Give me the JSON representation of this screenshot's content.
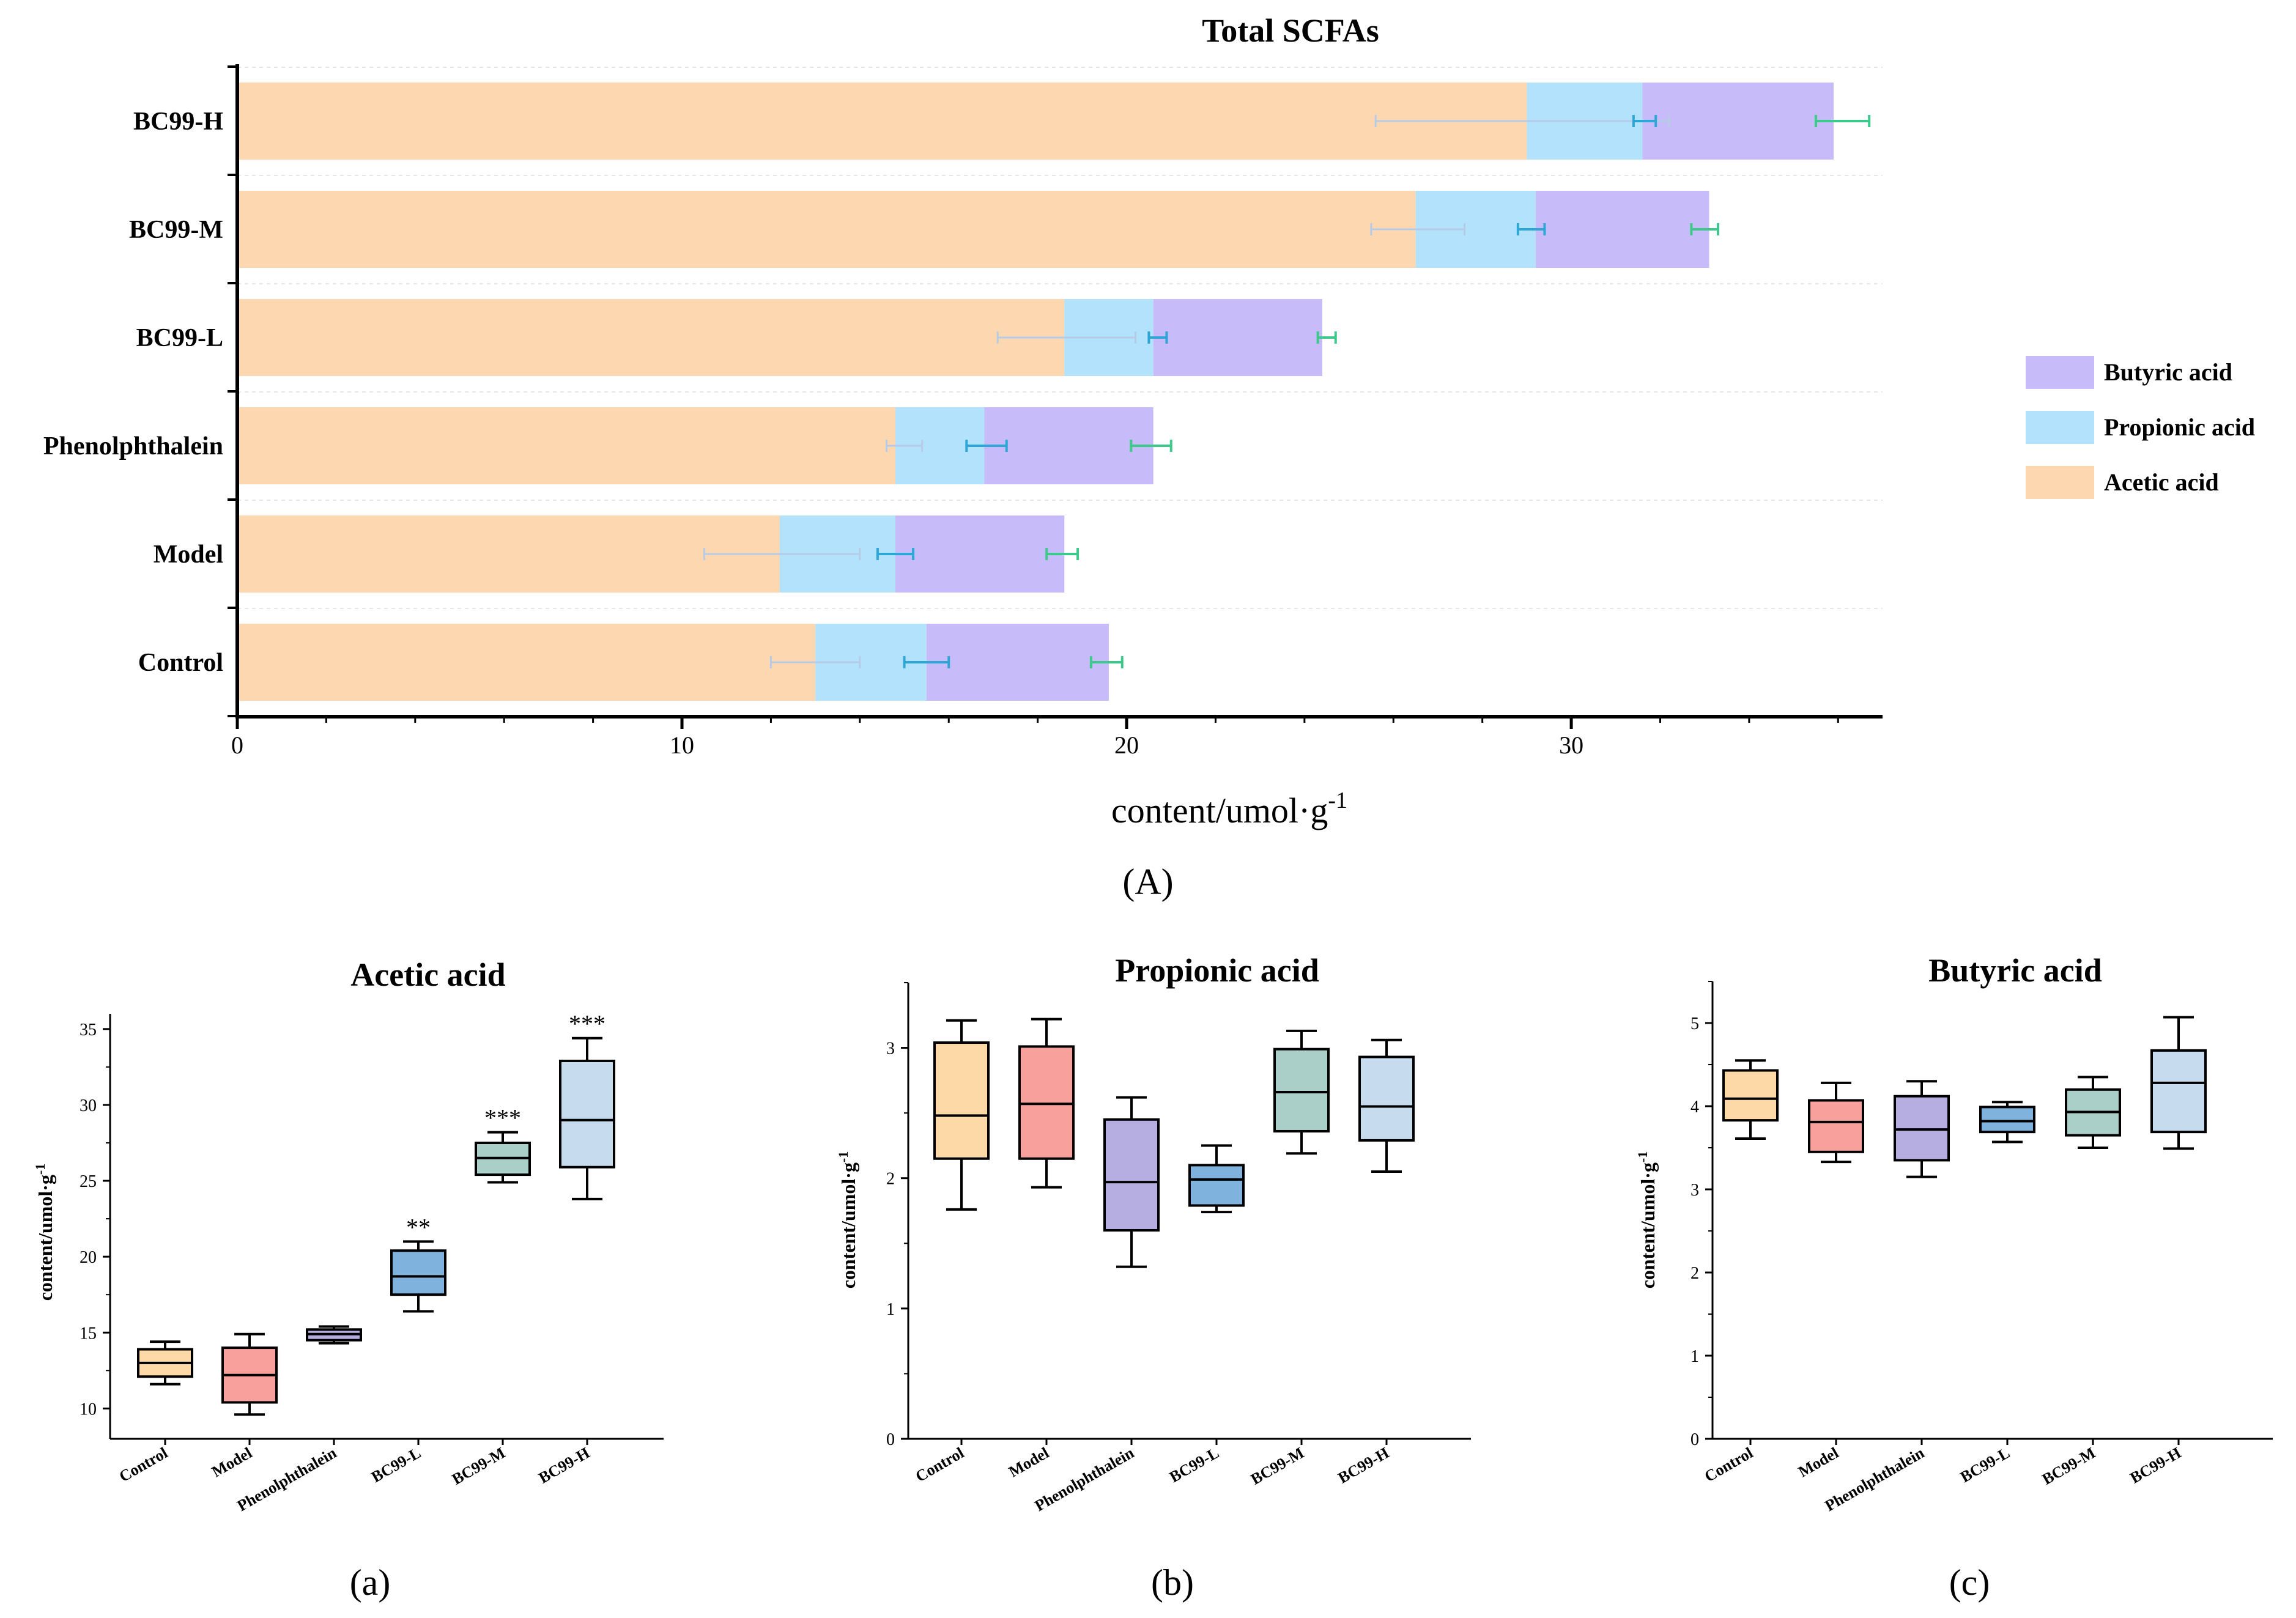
{
  "figure_labels": {
    "A": "(A)",
    "a": "(a)",
    "b": "(b)",
    "c": "(c)"
  },
  "colors": {
    "acetic": "#fdd7b0",
    "propionic": "#b3e2fc",
    "butyric": "#c7bcf9",
    "box_fills": [
      "#fcd9a7",
      "#f7a09c",
      "#b6aee0",
      "#7fb3de",
      "#a9cfc8",
      "#c6dcee"
    ]
  },
  "chart_data": [
    {
      "type": "bar",
      "orientation": "horizontal",
      "stacked": true,
      "title": "Total SCFAs",
      "xlabel": "content/umol·g",
      "xlabel_sup": "-1",
      "ylabel": "",
      "xlim": [
        0,
        37
      ],
      "xticks": [
        0,
        10,
        20,
        30
      ],
      "tick_labels": [
        "0",
        "10",
        "20",
        "30"
      ],
      "categories": [
        "Control",
        "Model",
        "Phenolphthalein",
        "BC99-L",
        "BC99-M",
        "BC99-H"
      ],
      "series": [
        {
          "name": "Acetic acid",
          "values": [
            13.0,
            12.2,
            14.8,
            18.6,
            26.5,
            29.0
          ],
          "error_low": [
            12.0,
            10.5,
            14.6,
            17.1,
            25.5,
            25.6
          ],
          "error_high": [
            14.0,
            14.0,
            15.4,
            20.2,
            27.6,
            32.2
          ],
          "err_color": "#b6cce6"
        },
        {
          "name": "Propionic acid",
          "values": [
            2.5,
            2.6,
            2.0,
            2.0,
            2.7,
            2.6
          ],
          "error_low": [
            15.0,
            14.4,
            16.4,
            20.5,
            28.8,
            31.4
          ],
          "error_high": [
            16.0,
            15.2,
            17.3,
            20.9,
            29.4,
            31.9
          ],
          "err_color": "#2ea6d6"
        },
        {
          "name": "Butyric acid",
          "values": [
            4.1,
            3.8,
            3.8,
            3.8,
            3.9,
            4.3
          ],
          "error_low": [
            19.2,
            18.2,
            20.1,
            24.3,
            32.7,
            35.5
          ],
          "error_high": [
            19.9,
            18.9,
            21.0,
            24.7,
            33.3,
            36.7
          ],
          "err_color": "#3ec98c"
        }
      ],
      "legend": {
        "position": "right",
        "order": [
          "Butyric acid",
          "Propionic acid",
          "Acetic acid"
        ]
      }
    },
    {
      "type": "box",
      "title": "Acetic acid",
      "ylabel": "content/umol·g",
      "ylabel_sup": "-1",
      "ylim": [
        8,
        36
      ],
      "yticks": [
        10,
        15,
        20,
        25,
        30,
        35
      ],
      "tick_labels": [
        "10",
        "15",
        "20",
        "25",
        "30",
        "35"
      ],
      "categories": [
        "Control",
        "Model",
        "Phenolphthalein",
        "BC99-L",
        "BC99-M",
        "BC99-H"
      ],
      "boxes": [
        {
          "min": 11.6,
          "q1": 12.1,
          "median": 13.0,
          "q3": 13.9,
          "max": 14.4
        },
        {
          "min": 9.6,
          "q1": 10.4,
          "median": 12.2,
          "q3": 14.0,
          "max": 14.9
        },
        {
          "min": 14.3,
          "q1": 14.5,
          "median": 14.9,
          "q3": 15.2,
          "max": 15.4
        },
        {
          "min": 16.4,
          "q1": 17.5,
          "median": 18.7,
          "q3": 20.4,
          "max": 21.0
        },
        {
          "min": 24.9,
          "q1": 25.4,
          "median": 26.5,
          "q3": 27.5,
          "max": 28.2
        },
        {
          "min": 23.8,
          "q1": 25.9,
          "median": 29.0,
          "q3": 32.9,
          "max": 34.4
        }
      ],
      "significance": [
        "",
        "",
        "",
        "**",
        "***",
        "***"
      ]
    },
    {
      "type": "box",
      "title": "Propionic acid",
      "ylabel": "content/umol·g",
      "ylabel_sup": "-1",
      "ylim": [
        0,
        3.5
      ],
      "yticks": [
        0,
        1,
        2,
        3
      ],
      "tick_labels": [
        "0",
        "1",
        "2",
        "3"
      ],
      "categories": [
        "Control",
        "Model",
        "Phenolphthalein",
        "BC99-L",
        "BC99-M",
        "BC99-H"
      ],
      "boxes": [
        {
          "min": 1.76,
          "q1": 2.15,
          "median": 2.48,
          "q3": 3.04,
          "max": 3.21
        },
        {
          "min": 1.93,
          "q1": 2.15,
          "median": 2.57,
          "q3": 3.01,
          "max": 3.22
        },
        {
          "min": 1.32,
          "q1": 1.6,
          "median": 1.97,
          "q3": 2.45,
          "max": 2.62
        },
        {
          "min": 1.74,
          "q1": 1.79,
          "median": 1.99,
          "q3": 2.1,
          "max": 2.25
        },
        {
          "min": 2.19,
          "q1": 2.36,
          "median": 2.66,
          "q3": 2.99,
          "max": 3.13
        },
        {
          "min": 2.05,
          "q1": 2.29,
          "median": 2.55,
          "q3": 2.93,
          "max": 3.06
        }
      ]
    },
    {
      "type": "box",
      "title": "Butyric acid",
      "ylabel": "content/umol·g",
      "ylabel_sup": "-1",
      "ylim": [
        0,
        5.5
      ],
      "yticks": [
        0,
        1,
        2,
        3,
        4,
        5
      ],
      "tick_labels": [
        "0",
        "1",
        "2",
        "3",
        "4",
        "5"
      ],
      "categories": [
        "Control",
        "Model",
        "Phenolphthalein",
        "BC99-L",
        "BC99-M",
        "BC99-H"
      ],
      "boxes": [
        {
          "min": 3.61,
          "q1": 3.83,
          "median": 4.09,
          "q3": 4.43,
          "max": 4.55
        },
        {
          "min": 3.33,
          "q1": 3.45,
          "median": 3.81,
          "q3": 4.07,
          "max": 4.28
        },
        {
          "min": 3.15,
          "q1": 3.35,
          "median": 3.72,
          "q3": 4.12,
          "max": 4.3
        },
        {
          "min": 3.57,
          "q1": 3.69,
          "median": 3.82,
          "q3": 3.99,
          "max": 4.05
        },
        {
          "min": 3.5,
          "q1": 3.65,
          "median": 3.93,
          "q3": 4.2,
          "max": 4.35
        },
        {
          "min": 3.49,
          "q1": 3.69,
          "median": 4.28,
          "q3": 4.67,
          "max": 5.07
        }
      ]
    }
  ]
}
